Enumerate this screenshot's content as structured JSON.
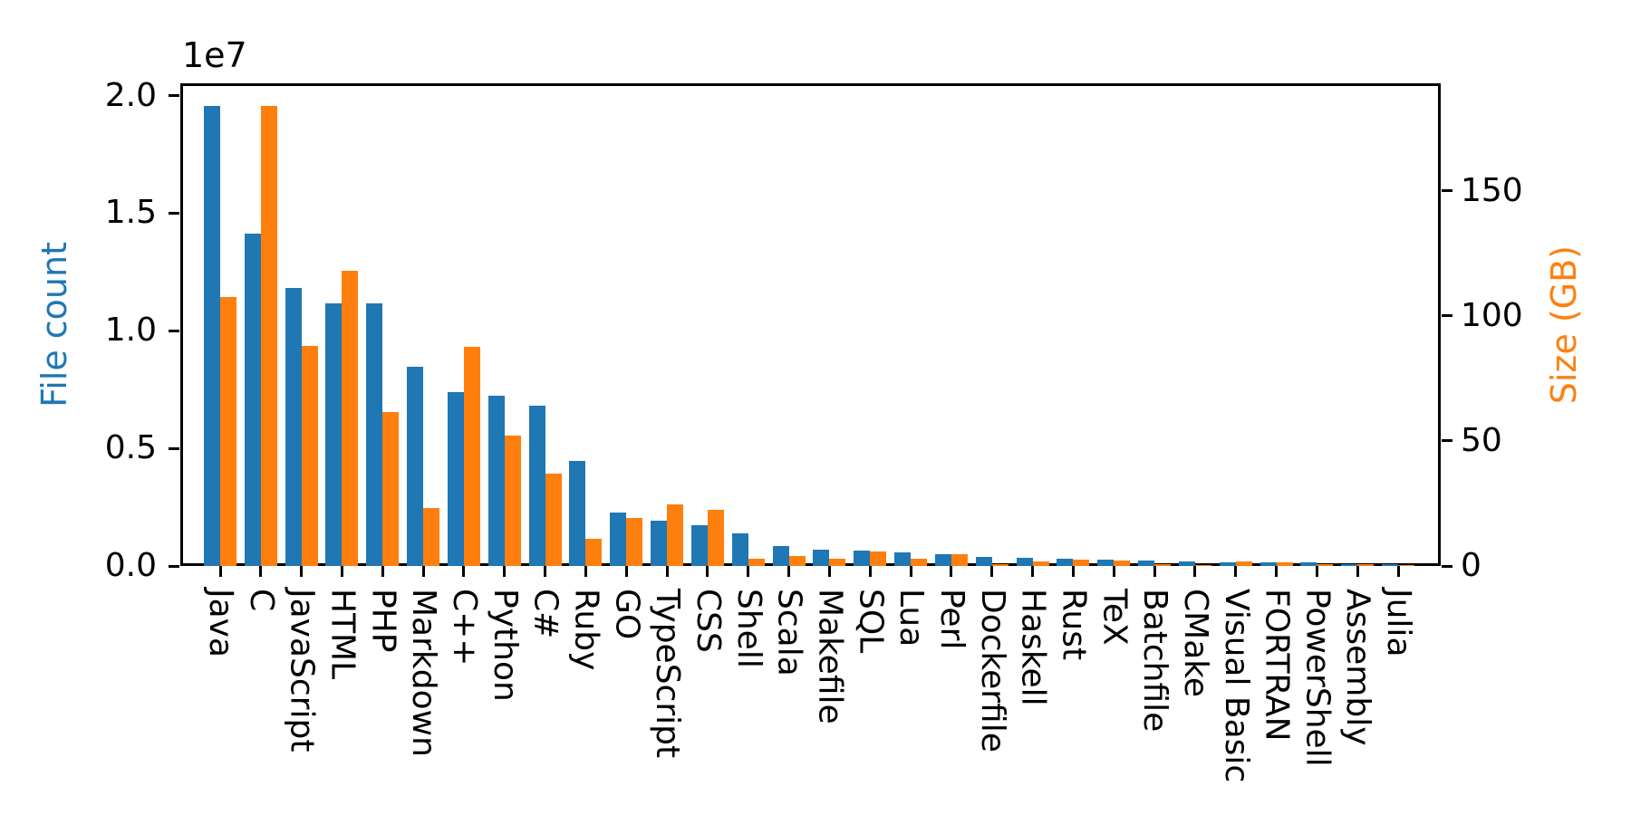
{
  "chart_data": {
    "type": "bar",
    "title": "",
    "categories": [
      "Java",
      "C",
      "JavaScript",
      "HTML",
      "PHP",
      "Markdown",
      "C++",
      "Python",
      "C#",
      "Ruby",
      "GO",
      "TypeScript",
      "CSS",
      "Shell",
      "Scala",
      "Makefile",
      "SQL",
      "Lua",
      "Perl",
      "Dockerfile",
      "Haskell",
      "Rust",
      "TeX",
      "Batchfile",
      "CMake",
      "Visual Basic",
      "FORTRAN",
      "PowerShell",
      "Assembly",
      "Julia"
    ],
    "series": [
      {
        "name": "File count",
        "axis": "left",
        "color": "#1f77b4",
        "values": [
          19548190,
          14143113,
          11839883,
          11178557,
          11177610,
          8464626,
          7380520,
          7226626,
          6811652,
          4473331,
          2265436,
          1940406,
          1734406,
          1385648,
          835755,
          679430,
          656671,
          578554,
          497949,
          366505,
          340623,
          322431,
          251015,
          236945,
          175282,
          155652,
          142038,
          136846,
          82905,
          58317
        ]
      },
      {
        "name": "Size (GB)",
        "axis": "right",
        "color": "#ff7f0e",
        "values": [
          107.7,
          183.83,
          87.82,
          118.12,
          61.41,
          23.09,
          87.73,
          52.03,
          36.83,
          10.95,
          19.28,
          24.59,
          22.61,
          3.01,
          3.87,
          2.92,
          5.67,
          2.81,
          4.7,
          0.71,
          1.85,
          2.68,
          2.15,
          0.7,
          0.54,
          1.91,
          1.62,
          0.69,
          0.78,
          0.29
        ]
      }
    ],
    "left_axis": {
      "label": "File count",
      "label_color": "#1f77b4",
      "offset_text": "1e7",
      "tick_labels": [
        "0.0",
        "0.5",
        "1.0",
        "1.5",
        "2.0"
      ],
      "tick_values": [
        0,
        5000000,
        10000000,
        15000000,
        20000000
      ],
      "range_min": 0,
      "range_max": 20525000
    },
    "right_axis": {
      "label": "Size (GB)",
      "label_color": "#ff7f0e",
      "tick_labels": [
        "0",
        "50",
        "100",
        "150"
      ],
      "tick_values": [
        0,
        50,
        100,
        150
      ],
      "range_min": 0,
      "range_max": 193.0
    },
    "x_tick_rotation_deg": 90,
    "grid": false,
    "legend": "none",
    "background": "#ffffff",
    "spine_color": "#000000"
  }
}
